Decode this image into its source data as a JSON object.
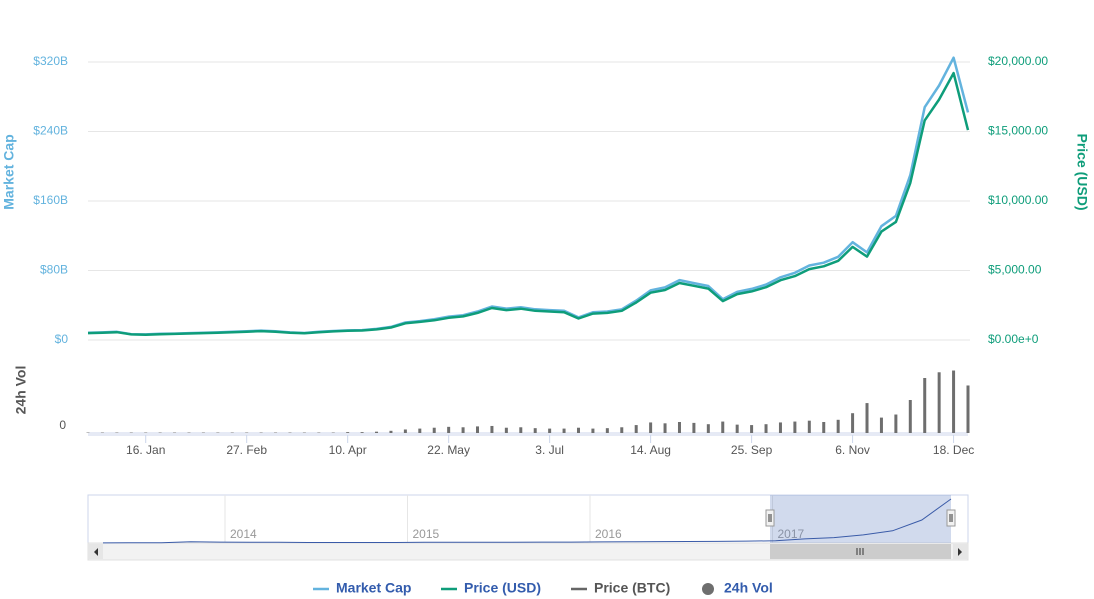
{
  "chart_data": {
    "type": "line",
    "categories": [
      null,
      null,
      null,
      null,
      "16. Jan",
      null,
      null,
      null,
      null,
      null,
      null,
      "27. Feb",
      null,
      null,
      null,
      null,
      null,
      null,
      "10. Apr",
      null,
      null,
      null,
      null,
      null,
      null,
      "22. May",
      null,
      null,
      null,
      null,
      null,
      null,
      "3. Jul",
      null,
      null,
      null,
      null,
      null,
      null,
      "14. Aug",
      null,
      null,
      null,
      null,
      null,
      null,
      "25. Sep",
      null,
      null,
      null,
      null,
      null,
      null,
      "6. Nov",
      null,
      null,
      null,
      null,
      null,
      null,
      "18. Dec",
      null
    ],
    "series": [
      {
        "name": "Market Cap",
        "color": "#63b3de",
        "axis": "y",
        "values": [
          8.4,
          8.7,
          9.4,
          6.7,
          6.4,
          7.1,
          7.4,
          7.9,
          8.4,
          8.7,
          9.4,
          10.1,
          10.8,
          10.1,
          8.7,
          8.1,
          9.4,
          10.4,
          11.1,
          11.4,
          12.8,
          15.1,
          20.2,
          21.8,
          23.9,
          26.9,
          28.6,
          32.8,
          38.6,
          36.1,
          37.8,
          35.3,
          34.4,
          33.6,
          26.0,
          31.9,
          32.8,
          35.3,
          45.4,
          57.1,
          60.5,
          68.9,
          65.5,
          62.2,
          47.0,
          55.4,
          58.8,
          63.8,
          72.2,
          77.3,
          85.7,
          89.0,
          95.8,
          112.6,
          100.8,
          131.0,
          142.8,
          189.8,
          268.0,
          293.0,
          325.0,
          262.0
        ]
      },
      {
        "name": "Price (USD)",
        "color": "#0e9d7a",
        "axis": "y2",
        "values": [
          500,
          520,
          560,
          400,
          380,
          420,
          440,
          470,
          500,
          520,
          560,
          600,
          640,
          600,
          520,
          480,
          560,
          620,
          660,
          680,
          760,
          900,
          1200,
          1300,
          1420,
          1600,
          1700,
          1950,
          2300,
          2150,
          2250,
          2100,
          2050,
          2000,
          1550,
          1900,
          1950,
          2100,
          2700,
          3400,
          3600,
          4100,
          3900,
          3700,
          2800,
          3300,
          3500,
          3800,
          4300,
          4600,
          5100,
          5300,
          5700,
          6700,
          6000,
          7800,
          8500,
          11300,
          15800,
          17300,
          19200,
          15100
        ]
      },
      {
        "name": "24h Vol",
        "color": "#6e6e6e",
        "axis": "y3",
        "values": [
          0.1,
          0.1,
          0.1,
          0.1,
          0.1,
          0.1,
          0.1,
          0.1,
          0.1,
          0.1,
          0.1,
          0.1,
          0.1,
          0.1,
          0.1,
          0.1,
          0.1,
          0.1,
          0.2,
          0.2,
          0.3,
          0.5,
          0.8,
          1.0,
          1.2,
          1.4,
          1.3,
          1.5,
          1.6,
          1.2,
          1.3,
          1.1,
          1.0,
          1.0,
          1.2,
          1.0,
          1.1,
          1.3,
          1.8,
          2.4,
          2.2,
          2.5,
          2.3,
          2.0,
          2.6,
          1.9,
          1.8,
          2.0,
          2.4,
          2.6,
          2.8,
          2.5,
          3.0,
          4.5,
          6.8,
          3.5,
          4.2,
          7.5,
          12.5,
          13.8,
          14.2,
          10.8
        ]
      }
    ],
    "hidden_series": [
      {
        "name": "Price (BTC)",
        "color": "#666666"
      }
    ],
    "ylabel": "Market Cap",
    "y2label": "Price (USD)",
    "y3label": "24h Vol",
    "ylim": [
      0,
      320
    ],
    "yticks": [
      {
        "value": 0,
        "label": "$0"
      },
      {
        "value": 80,
        "label": "$80B"
      },
      {
        "value": 160,
        "label": "$160B"
      },
      {
        "value": 240,
        "label": "$240B"
      },
      {
        "value": 320,
        "label": "$320B"
      }
    ],
    "y2lim": [
      0,
      20000
    ],
    "y2ticks": [
      {
        "value": 0,
        "label": "$0.00e+0"
      },
      {
        "value": 5000,
        "label": "$5,000.00"
      },
      {
        "value": 10000,
        "label": "$10,000.00"
      },
      {
        "value": 15000,
        "label": "$15,000.00"
      },
      {
        "value": 20000,
        "label": "$20,000.00"
      }
    ],
    "y3lim": [
      0,
      20
    ],
    "y3ticks": [
      0
    ],
    "grid": true,
    "navigator": {
      "labels": [
        "2014",
        "2015",
        "2016",
        "2017"
      ],
      "ylim": [
        0,
        340
      ],
      "values": [
        1,
        2,
        1.5,
        9,
        7,
        6,
        5,
        4,
        3.5,
        4,
        4,
        5,
        5,
        5.5,
        6,
        6.5,
        7,
        8,
        9,
        10,
        11,
        12,
        14,
        16,
        30,
        40,
        60,
        90,
        170,
        325
      ]
    }
  }
}
